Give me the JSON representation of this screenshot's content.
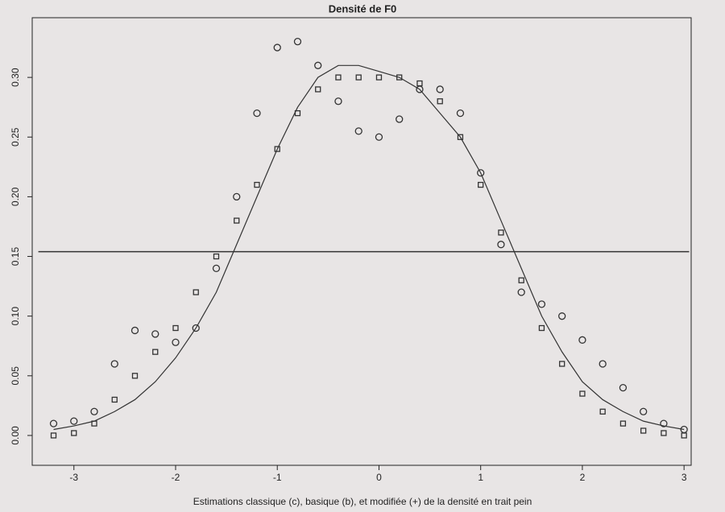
{
  "chart_data": {
    "type": "line",
    "title": "Densité de F0",
    "x_label": "Estimations classique (c), basique (b), et modifiée (+) de la densité en trait pein",
    "x": [
      -3.2,
      -3.0,
      -2.8,
      -2.6,
      -2.4,
      -2.2,
      -2.0,
      -1.8,
      -1.6,
      -1.4,
      -1.2,
      -1.0,
      -0.8,
      -0.6,
      -0.4,
      -0.2,
      0,
      0.2,
      0.4,
      0.6,
      0.8,
      1.0,
      1.2,
      1.4,
      1.6,
      1.8,
      2.0,
      2.2,
      2.4,
      2.6,
      2.8,
      3.0
    ],
    "series": [
      {
        "color": "#333333",
        "marker": "circle",
        "values": [
          0.01,
          0.012,
          0.02,
          0.06,
          0.088,
          0.085,
          0.078,
          0.09,
          0.14,
          0.2,
          0.27,
          0.325,
          0.33,
          0.31,
          0.28,
          0.255,
          0.25,
          0.265,
          0.29,
          0.29,
          0.27,
          0.22,
          0.16,
          0.12,
          0.11,
          0.1,
          0.08,
          0.06,
          0.04,
          0.02,
          0.01,
          0.005
        ]
      },
      {
        "color": "#333333",
        "marker": "square",
        "values": [
          0.0,
          0.002,
          0.01,
          0.03,
          0.05,
          0.07,
          0.09,
          0.12,
          0.15,
          0.18,
          0.21,
          0.24,
          0.27,
          0.29,
          0.3,
          0.3,
          0.3,
          0.3,
          0.295,
          0.28,
          0.25,
          0.21,
          0.17,
          0.13,
          0.09,
          0.06,
          0.035,
          0.02,
          0.01,
          0.004,
          0.002,
          0.0
        ]
      },
      {
        "color": "#333333",
        "marker": "none",
        "values": [
          0.005,
          0.008,
          0.012,
          0.02,
          0.03,
          0.045,
          0.065,
          0.09,
          0.12,
          0.16,
          0.2,
          0.24,
          0.275,
          0.3,
          0.31,
          0.31,
          0.305,
          0.3,
          0.29,
          0.27,
          0.25,
          0.22,
          0.18,
          0.14,
          0.1,
          0.07,
          0.045,
          0.03,
          0.02,
          0.012,
          0.008,
          0.005
        ]
      },
      {
        "color": "#333333",
        "marker": "plus",
        "x": [
          -3.35,
          3.05
        ],
        "values": [
          0.154,
          0.154
        ]
      }
    ],
    "xlim": [
      -3.41,
      3.07
    ],
    "ylim": [
      -0.025,
      0.35
    ],
    "xticks": [
      -3,
      -2,
      -1,
      0,
      1,
      2,
      3
    ],
    "yticks": [
      {
        "value": 0,
        "label": "0.00"
      },
      {
        "value": 0.05,
        "label": "0.05"
      },
      {
        "value": 0.1,
        "label": "0.10"
      },
      {
        "value": 0.15,
        "label": "0.15"
      },
      {
        "value": 0.2,
        "label": "0.20"
      },
      {
        "value": 0.25,
        "label": "0.25"
      },
      {
        "value": 0.3,
        "label": "0.30"
      }
    ]
  }
}
